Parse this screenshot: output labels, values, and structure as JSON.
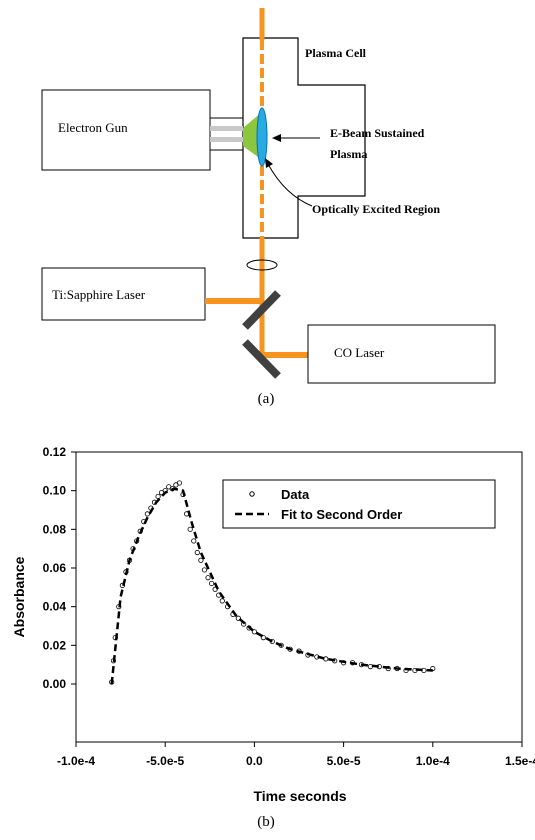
{
  "diagram": {
    "plasma_cell": "Plasma Cell",
    "electron_gun": "Electron Gun",
    "e_beam_plasma": [
      "E-Beam Sustained",
      "Plasma"
    ],
    "excited_region": "Optically Excited Region",
    "ti_sapphire": "Ti:Sapphire Laser",
    "co_laser": "CO Laser",
    "caption": "(a)"
  },
  "chart_data": {
    "type": "scatter",
    "x_label": "Time seconds",
    "y_label": "Absorbance",
    "caption": "(b)",
    "xlim": [
      -0.0001,
      0.00015
    ],
    "xticks": [
      {
        "value": -0.0001,
        "label": "-1.0e-4"
      },
      {
        "value": -5e-05,
        "label": "-5.0e-5"
      },
      {
        "value": 0,
        "label": "0.0"
      },
      {
        "value": 5e-05,
        "label": "5.0e-5"
      },
      {
        "value": 0.0001,
        "label": "1.0e-4"
      },
      {
        "value": 0.00015,
        "label": "1.5e-4"
      }
    ],
    "ylim": [
      -0.03,
      0.12
    ],
    "yticks": [
      {
        "value": 0,
        "label": "0.00"
      },
      {
        "value": 0.02,
        "label": "0.02"
      },
      {
        "value": 0.04,
        "label": "0.04"
      },
      {
        "value": 0.06,
        "label": "0.06"
      },
      {
        "value": 0.08,
        "label": "0.08"
      },
      {
        "value": 0.1,
        "label": "0.10"
      },
      {
        "value": 0.12,
        "label": "0.12"
      }
    ],
    "legend": "upper right",
    "series": [
      {
        "name": "Data",
        "kind": "points",
        "color": "#000000",
        "x": [
          -8e-05,
          -7.9e-05,
          -7.8e-05,
          -7.6e-05,
          -7.4e-05,
          -7.2e-05,
          -7e-05,
          -6.8e-05,
          -6.6e-05,
          -6.4e-05,
          -6.2e-05,
          -6e-05,
          -5.8e-05,
          -5.6e-05,
          -5.4e-05,
          -5.2e-05,
          -5e-05,
          -4.8e-05,
          -4.6e-05,
          -4.4e-05,
          -4.2e-05,
          -4e-05,
          -3.8e-05,
          -3.6e-05,
          -3.4e-05,
          -3.2e-05,
          -3e-05,
          -2.8e-05,
          -2.6e-05,
          -2.4e-05,
          -2.2e-05,
          -2e-05,
          -1.8e-05,
          -1.5e-05,
          -1.2e-05,
          -9e-06,
          -6e-06,
          -3e-06,
          0,
          5e-06,
          1e-05,
          1.5e-05,
          2e-05,
          2.5e-05,
          3e-05,
          3.5e-05,
          4e-05,
          4.5e-05,
          5e-05,
          5.5e-05,
          6e-05,
          6.5e-05,
          7e-05,
          7.5e-05,
          8e-05,
          8.5e-05,
          9e-05,
          9.5e-05,
          0.0001
        ],
        "values": [
          0.001,
          0.012,
          0.024,
          0.04,
          0.051,
          0.058,
          0.064,
          0.07,
          0.074,
          0.079,
          0.084,
          0.088,
          0.091,
          0.094,
          0.097,
          0.099,
          0.1,
          0.102,
          0.101,
          0.103,
          0.104,
          0.098,
          0.088,
          0.08,
          0.074,
          0.068,
          0.064,
          0.059,
          0.055,
          0.052,
          0.049,
          0.046,
          0.043,
          0.04,
          0.036,
          0.034,
          0.031,
          0.029,
          0.027,
          0.024,
          0.022,
          0.02,
          0.018,
          0.017,
          0.015,
          0.014,
          0.013,
          0.012,
          0.011,
          0.011,
          0.01,
          0.009,
          0.009,
          0.008,
          0.008,
          0.007,
          0.007,
          0.007,
          0.008
        ]
      },
      {
        "name": "Fit to Second Order",
        "kind": "dashed-line",
        "color": "#000000",
        "x": [
          -8e-05,
          -7.5e-05,
          -7e-05,
          -6.5e-05,
          -6e-05,
          -5.5e-05,
          -5e-05,
          -4.5e-05,
          -4e-05,
          -3.5e-05,
          -3e-05,
          -2e-05,
          -1e-05,
          0,
          1e-05,
          2e-05,
          4e-05,
          6e-05,
          8e-05,
          0.0001
        ],
        "values": [
          0,
          0.045,
          0.064,
          0.076,
          0.086,
          0.094,
          0.099,
          0.101,
          0.1,
          0.083,
          0.068,
          0.048,
          0.035,
          0.027,
          0.022,
          0.018,
          0.013,
          0.01,
          0.008,
          0.007
        ]
      }
    ]
  }
}
